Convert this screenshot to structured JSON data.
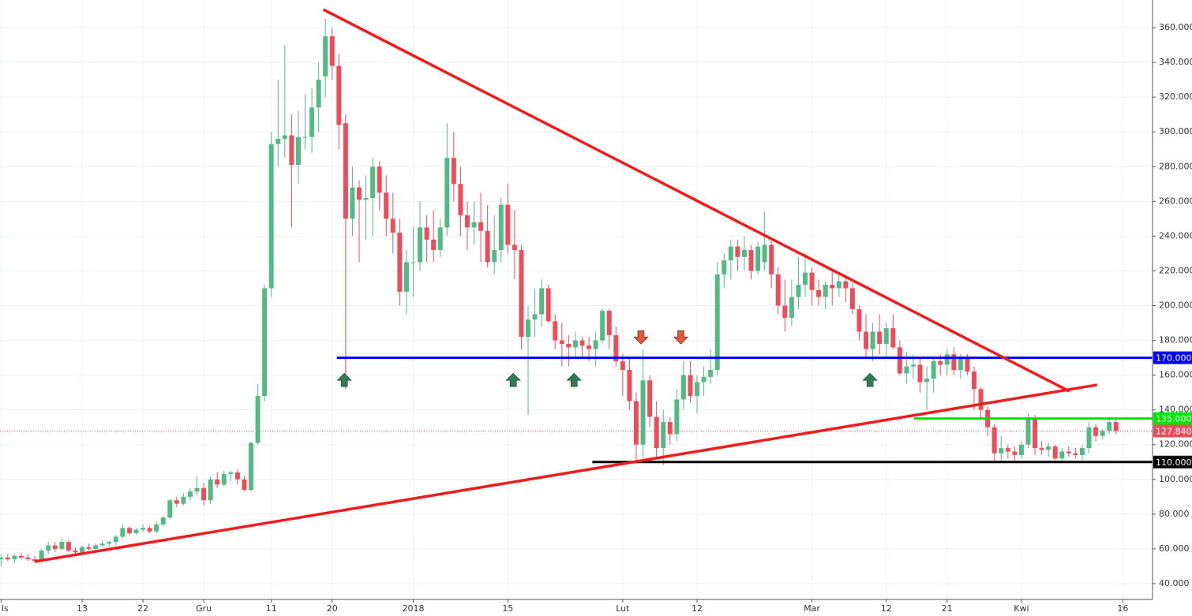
{
  "chart_data": {
    "type": "candlestick",
    "x": [
      0,
      1,
      2,
      3,
      4,
      5,
      6,
      7,
      8,
      9,
      10,
      11,
      12,
      13,
      14,
      15,
      16,
      17,
      18,
      19,
      20,
      21,
      22,
      23,
      24,
      25,
      26,
      27,
      28,
      29,
      30,
      31,
      32,
      33,
      34,
      35,
      36,
      37,
      38,
      39,
      40,
      41,
      42,
      43,
      44,
      45,
      46,
      47,
      48,
      49,
      50,
      51,
      52,
      53,
      54,
      55,
      56,
      57,
      58,
      59,
      60,
      61,
      62,
      63,
      64,
      65,
      66,
      67,
      68,
      69,
      70,
      71,
      72,
      73,
      74,
      75,
      76,
      77,
      78,
      79,
      80,
      81,
      82,
      83,
      84,
      85,
      86,
      87,
      88,
      89,
      90,
      91,
      92,
      93,
      94,
      95,
      96,
      97,
      98,
      99,
      100,
      101,
      102,
      103,
      104,
      105,
      106,
      107,
      108,
      109,
      110,
      111,
      112,
      113,
      114,
      115,
      116,
      117,
      118,
      119,
      120,
      121,
      122,
      123,
      124,
      125,
      126,
      127,
      128,
      129,
      130,
      131,
      132,
      133,
      134,
      135,
      136,
      137,
      138,
      139,
      140,
      141,
      142,
      143,
      144,
      145,
      146,
      147,
      148,
      149,
      150,
      151,
      152,
      153,
      154,
      155,
      156,
      157,
      158,
      159,
      160,
      161,
      162,
      163,
      164,
      165
    ],
    "open": [
      54,
      55,
      54,
      56,
      55,
      54,
      53,
      59,
      62,
      60,
      64,
      59,
      58,
      61,
      60,
      62,
      63,
      64,
      67,
      72,
      69,
      71,
      72,
      70,
      74,
      78,
      88,
      86,
      90,
      93,
      95,
      88,
      100,
      97,
      103,
      104,
      100,
      94,
      121,
      148,
      210,
      293,
      296,
      298,
      281,
      297,
      297,
      314,
      332,
      355,
      338,
      305,
      250,
      268,
      261,
      262,
      280,
      265,
      250,
      242,
      208,
      225,
      225,
      245,
      238,
      232,
      245,
      285,
      270,
      252,
      245,
      248,
      243,
      225,
      232,
      258,
      235,
      232,
      182,
      192,
      195,
      210,
      191,
      180,
      178,
      176,
      180,
      177,
      175,
      180,
      197,
      183,
      168,
      163,
      145,
      120,
      157,
      136,
      118,
      133,
      126,
      146,
      160,
      148,
      156,
      159,
      163,
      218,
      226,
      234,
      228,
      232,
      220,
      225,
      235,
      218,
      200,
      193,
      205,
      212,
      219,
      209,
      205,
      212,
      210,
      214,
      210,
      198,
      185,
      175,
      185,
      178,
      187,
      176,
      161,
      165,
      166,
      156,
      158,
      168,
      166,
      172,
      163,
      170,
      162,
      152,
      140,
      130,
      115,
      118,
      116,
      114,
      120,
      135,
      118,
      117,
      119,
      112,
      116,
      115,
      114,
      118,
      130,
      125,
      128,
      133
    ],
    "high": [
      57,
      57,
      57,
      58,
      57,
      56,
      60,
      64,
      64,
      66,
      65,
      61,
      62,
      63,
      63,
      65,
      65,
      68,
      74,
      73,
      72,
      74,
      73,
      76,
      79,
      89,
      90,
      92,
      95,
      102,
      98,
      102,
      104,
      105,
      105,
      106,
      102,
      122,
      155,
      212,
      300,
      330,
      350,
      310,
      312,
      322,
      325,
      340,
      365,
      360,
      345,
      310,
      280,
      272,
      275,
      285,
      283,
      275,
      265,
      250,
      232,
      245,
      260,
      252,
      255,
      250,
      305,
      300,
      280,
      260,
      260,
      265,
      258,
      252,
      262,
      270,
      255,
      235,
      200,
      210,
      215,
      212,
      195,
      190,
      183,
      185,
      182,
      182,
      185,
      198,
      198,
      188,
      172,
      170,
      150,
      175,
      160,
      145,
      140,
      136,
      152,
      168,
      168,
      160,
      165,
      175,
      225,
      230,
      238,
      238,
      240,
      235,
      237,
      254,
      238,
      222,
      215,
      215,
      228,
      230,
      222,
      215,
      214,
      220,
      218,
      218,
      213,
      200,
      195,
      190,
      195,
      190,
      195,
      180,
      173,
      172,
      170,
      165,
      170,
      172,
      175,
      176,
      172,
      172,
      165,
      153,
      142,
      132,
      125,
      120,
      119,
      122,
      138,
      137,
      122,
      121,
      120,
      118,
      119,
      118,
      120,
      133,
      132,
      129,
      135,
      135
    ],
    "low": [
      50,
      53,
      52,
      54,
      53,
      52,
      52,
      57,
      58,
      59,
      58,
      56,
      57,
      59,
      58,
      61,
      61,
      62,
      66,
      68,
      68,
      70,
      69,
      69,
      73,
      77,
      84,
      85,
      88,
      91,
      85,
      86,
      95,
      96,
      99,
      97,
      93,
      93,
      120,
      145,
      205,
      280,
      285,
      245,
      270,
      290,
      288,
      300,
      320,
      330,
      290,
      152,
      240,
      225,
      238,
      240,
      255,
      240,
      230,
      200,
      195,
      205,
      220,
      225,
      225,
      228,
      240,
      260,
      240,
      232,
      235,
      225,
      222,
      218,
      225,
      230,
      215,
      175,
      137,
      182,
      188,
      190,
      175,
      165,
      165,
      170,
      170,
      168,
      165,
      178,
      175,
      165,
      148,
      140,
      110,
      112,
      130,
      112,
      108,
      120,
      122,
      140,
      144,
      138,
      148,
      155,
      160,
      210,
      215,
      220,
      220,
      215,
      218,
      220,
      210,
      195,
      185,
      188,
      198,
      205,
      200,
      200,
      198,
      200,
      205,
      202,
      195,
      180,
      170,
      168,
      172,
      170,
      175,
      160,
      155,
      158,
      150,
      140,
      150,
      160,
      160,
      160,
      158,
      160,
      140,
      135,
      125,
      110,
      110,
      112,
      110,
      112,
      118,
      114,
      114,
      113,
      111,
      110,
      113,
      112,
      111,
      115,
      122,
      123,
      126,
      126
    ],
    "close": [
      55,
      54,
      56,
      55,
      54,
      53,
      59,
      62,
      60,
      64,
      59,
      58,
      61,
      60,
      62,
      63,
      64,
      67,
      72,
      69,
      71,
      72,
      70,
      74,
      78,
      88,
      86,
      90,
      93,
      95,
      88,
      100,
      97,
      103,
      104,
      100,
      94,
      121,
      148,
      210,
      293,
      296,
      298,
      281,
      297,
      297,
      314,
      330,
      355,
      338,
      304,
      250,
      268,
      261,
      262,
      280,
      265,
      250,
      242,
      208,
      225,
      225,
      245,
      238,
      232,
      245,
      285,
      270,
      252,
      245,
      248,
      243,
      225,
      232,
      258,
      235,
      232,
      182,
      192,
      195,
      210,
      191,
      180,
      178,
      176,
      180,
      177,
      175,
      180,
      197,
      183,
      168,
      163,
      145,
      120,
      157,
      136,
      118,
      133,
      126,
      146,
      160,
      148,
      156,
      159,
      163,
      218,
      226,
      234,
      228,
      232,
      220,
      234,
      235,
      218,
      200,
      193,
      205,
      212,
      219,
      209,
      205,
      212,
      210,
      214,
      210,
      198,
      185,
      175,
      185,
      178,
      187,
      176,
      161,
      165,
      166,
      156,
      158,
      168,
      166,
      172,
      163,
      170,
      162,
      152,
      140,
      130,
      115,
      118,
      116,
      114,
      120,
      135,
      118,
      117,
      119,
      112,
      116,
      115,
      114,
      118,
      130,
      125,
      128,
      133,
      127.84
    ],
    "up_color": "#53b987",
    "down_color": "#eb4d5c",
    "xlim": [
      -0.15,
      170.4
    ],
    "ylim": [
      30.9,
      375.9
    ],
    "xticks": [
      {
        "value": 0,
        "label": "ls"
      },
      {
        "value": 12,
        "label": "13"
      },
      {
        "value": 21,
        "label": "22"
      },
      {
        "value": 30,
        "label": "Gru"
      },
      {
        "value": 40,
        "label": "11"
      },
      {
        "value": 49,
        "label": "20"
      },
      {
        "value": 61,
        "label": "2018"
      },
      {
        "value": 75,
        "label": "15"
      },
      {
        "value": 92,
        "label": "Lut"
      },
      {
        "value": 103,
        "label": "12"
      },
      {
        "value": 120,
        "label": "Mar"
      },
      {
        "value": 131,
        "label": "12"
      },
      {
        "value": 140,
        "label": "21"
      },
      {
        "value": 151,
        "label": "Kwi"
      },
      {
        "value": 166,
        "label": "16"
      }
    ],
    "yticks": [
      {
        "value": 40,
        "label": "40.000"
      },
      {
        "value": 60,
        "label": "60.000"
      },
      {
        "value": 80,
        "label": "80.000"
      },
      {
        "value": 100,
        "label": "100.000"
      },
      {
        "value": 120,
        "label": "120.000"
      },
      {
        "value": 140,
        "label": "140.000"
      },
      {
        "value": 160,
        "label": "160.000"
      },
      {
        "value": 180,
        "label": "180.000"
      },
      {
        "value": 200,
        "label": "200.000"
      },
      {
        "value": 220,
        "label": "220.000"
      },
      {
        "value": 240,
        "label": "240.000"
      },
      {
        "value": 260,
        "label": "260.000"
      },
      {
        "value": 280,
        "label": "280.000"
      },
      {
        "value": 300,
        "label": "300.000"
      },
      {
        "value": 320,
        "label": "320.000"
      },
      {
        "value": 340,
        "label": "340.000"
      },
      {
        "value": 360,
        "label": "360.000"
      }
    ],
    "grid": true,
    "levels": [
      {
        "value": 170,
        "label": "170.000",
        "color": "#0000ff",
        "x_start": 49.7
      },
      {
        "value": 135,
        "label": "135.000",
        "color": "#00e600",
        "x_start": 135.1
      },
      {
        "value": 110,
        "label": "110.000",
        "color": "#000000",
        "x_start": 87.5
      }
    ],
    "last_price": {
      "value": 127.84,
      "label": "127.840",
      "color": "#eb4d5c"
    },
    "trendlines": [
      {
        "color": "#f21b1b",
        "points": [
          [
            47.7,
            370.4
          ],
          [
            158.1,
            150.7
          ]
        ]
      },
      {
        "color": "#f21b1b",
        "points": [
          [
            5,
            52.7
          ],
          [
            162.2,
            154.4
          ]
        ]
      }
    ],
    "arrows": [
      {
        "direction": "up",
        "color": "#2e7d57",
        "x": 50.8,
        "y": 157
      },
      {
        "direction": "up",
        "color": "#2e7d57",
        "x": 75.8,
        "y": 157
      },
      {
        "direction": "up",
        "color": "#2e7d57",
        "x": 84.8,
        "y": 157
      },
      {
        "direction": "up",
        "color": "#2e7d57",
        "x": 128.6,
        "y": 157
      },
      {
        "direction": "down",
        "color": "#e8543a",
        "x": 94.7,
        "y": 182
      },
      {
        "direction": "down",
        "color": "#e8543a",
        "x": 100.6,
        "y": 182
      }
    ]
  }
}
